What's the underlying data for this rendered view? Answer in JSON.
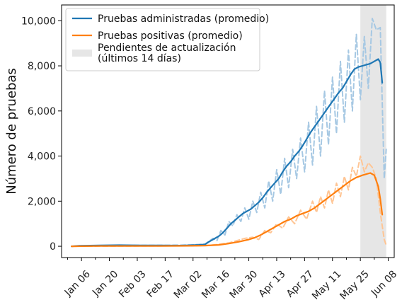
{
  "chart_data": {
    "type": "line",
    "title": "",
    "xlabel": "",
    "ylabel": "Número de pruebas",
    "ylim": [
      -500,
      10700
    ],
    "xlim": [
      "2019-12-27",
      "2020-06-11"
    ],
    "x_ticks": [
      {
        "date": "2020-01-06",
        "label": "Jan 06"
      },
      {
        "date": "2020-01-20",
        "label": "Jan 20"
      },
      {
        "date": "2020-02-03",
        "label": "Feb 03"
      },
      {
        "date": "2020-02-17",
        "label": "Feb 17"
      },
      {
        "date": "2020-03-02",
        "label": "Mar 02"
      },
      {
        "date": "2020-03-16",
        "label": "Mar 16"
      },
      {
        "date": "2020-03-30",
        "label": "Mar 30"
      },
      {
        "date": "2020-04-13",
        "label": "Apr 13"
      },
      {
        "date": "2020-04-27",
        "label": "Apr 27"
      },
      {
        "date": "2020-05-11",
        "label": "May 11"
      },
      {
        "date": "2020-05-25",
        "label": "May 25"
      },
      {
        "date": "2020-06-08",
        "label": "Jun 08"
      }
    ],
    "y_ticks": [
      {
        "value": 0,
        "label": "0"
      },
      {
        "value": 2000,
        "label": "2,000"
      },
      {
        "value": 4000,
        "label": "4,000"
      },
      {
        "value": 6000,
        "label": "6,000"
      },
      {
        "value": 8000,
        "label": "8,000"
      },
      {
        "value": 10000,
        "label": "10,000"
      }
    ],
    "grid": false,
    "legend_position": "top-left",
    "shaded_region": {
      "start": "2020-05-25",
      "end": "2020-06-07",
      "label": "Pendientes de actualización\n(últimos 14 días)",
      "color": "#e6e6e6"
    },
    "series": [
      {
        "name": "Pruebas administradas (promedio)",
        "color": "#1f77b4",
        "style": "solid",
        "points": [
          [
            "2020-01-01",
            0
          ],
          [
            "2020-01-05",
            20
          ],
          [
            "2020-01-15",
            40
          ],
          [
            "2020-01-25",
            50
          ],
          [
            "2020-02-05",
            40
          ],
          [
            "2020-02-15",
            40
          ],
          [
            "2020-02-25",
            30
          ],
          [
            "2020-03-05",
            60
          ],
          [
            "2020-03-08",
            80
          ],
          [
            "2020-03-10",
            200
          ],
          [
            "2020-03-12",
            300
          ],
          [
            "2020-03-15",
            450
          ],
          [
            "2020-03-17",
            600
          ],
          [
            "2020-03-19",
            800
          ],
          [
            "2020-03-21",
            1000
          ],
          [
            "2020-03-23",
            1150
          ],
          [
            "2020-03-25",
            1300
          ],
          [
            "2020-03-27",
            1450
          ],
          [
            "2020-03-29",
            1550
          ],
          [
            "2020-03-31",
            1650
          ],
          [
            "2020-04-02",
            1800
          ],
          [
            "2020-04-04",
            1950
          ],
          [
            "2020-04-06",
            2150
          ],
          [
            "2020-04-08",
            2400
          ],
          [
            "2020-04-10",
            2600
          ],
          [
            "2020-04-12",
            2800
          ],
          [
            "2020-04-14",
            3000
          ],
          [
            "2020-04-16",
            3300
          ],
          [
            "2020-04-18",
            3550
          ],
          [
            "2020-04-20",
            3750
          ],
          [
            "2020-04-22",
            4000
          ],
          [
            "2020-04-24",
            4200
          ],
          [
            "2020-04-26",
            4450
          ],
          [
            "2020-04-28",
            4750
          ],
          [
            "2020-04-30",
            5050
          ],
          [
            "2020-05-02",
            5300
          ],
          [
            "2020-05-04",
            5550
          ],
          [
            "2020-05-06",
            5800
          ],
          [
            "2020-05-08",
            6050
          ],
          [
            "2020-05-10",
            6300
          ],
          [
            "2020-05-12",
            6550
          ],
          [
            "2020-05-14",
            6800
          ],
          [
            "2020-05-16",
            7000
          ],
          [
            "2020-05-18",
            7300
          ],
          [
            "2020-05-20",
            7600
          ],
          [
            "2020-05-22",
            7850
          ],
          [
            "2020-05-24",
            7950
          ],
          [
            "2020-05-26",
            8000
          ],
          [
            "2020-05-28",
            8050
          ],
          [
            "2020-05-30",
            8100
          ],
          [
            "2020-06-01",
            8200
          ],
          [
            "2020-06-03",
            8300
          ],
          [
            "2020-06-04",
            8150
          ],
          [
            "2020-06-05",
            7250
          ]
        ]
      },
      {
        "name": "Pruebas positivas (promedio)",
        "color": "#ff7f0e",
        "style": "solid",
        "points": [
          [
            "2020-01-01",
            0
          ],
          [
            "2020-01-15",
            10
          ],
          [
            "2020-02-01",
            10
          ],
          [
            "2020-02-15",
            10
          ],
          [
            "2020-03-01",
            20
          ],
          [
            "2020-03-08",
            30
          ],
          [
            "2020-03-15",
            60
          ],
          [
            "2020-03-20",
            120
          ],
          [
            "2020-03-25",
            200
          ],
          [
            "2020-03-30",
            300
          ],
          [
            "2020-04-02",
            380
          ],
          [
            "2020-04-05",
            500
          ],
          [
            "2020-04-08",
            650
          ],
          [
            "2020-04-11",
            800
          ],
          [
            "2020-04-14",
            950
          ],
          [
            "2020-04-17",
            1100
          ],
          [
            "2020-04-20",
            1200
          ],
          [
            "2020-04-23",
            1350
          ],
          [
            "2020-04-26",
            1450
          ],
          [
            "2020-04-29",
            1550
          ],
          [
            "2020-05-02",
            1700
          ],
          [
            "2020-05-05",
            1900
          ],
          [
            "2020-05-08",
            2100
          ],
          [
            "2020-05-11",
            2300
          ],
          [
            "2020-05-14",
            2500
          ],
          [
            "2020-05-17",
            2700
          ],
          [
            "2020-05-20",
            2900
          ],
          [
            "2020-05-23",
            3050
          ],
          [
            "2020-05-26",
            3150
          ],
          [
            "2020-05-28",
            3200
          ],
          [
            "2020-05-30",
            3250
          ],
          [
            "2020-06-01",
            3150
          ],
          [
            "2020-06-03",
            2650
          ],
          [
            "2020-06-04",
            2100
          ],
          [
            "2020-06-05",
            1400
          ]
        ]
      },
      {
        "name": "",
        "color": "#a6c8e3",
        "style": "dashed",
        "points": [
          [
            "2020-01-01",
            0
          ],
          [
            "2020-01-15",
            30
          ],
          [
            "2020-02-01",
            40
          ],
          [
            "2020-02-15",
            40
          ],
          [
            "2020-03-01",
            60
          ],
          [
            "2020-03-08",
            100
          ],
          [
            "2020-03-12",
            350
          ],
          [
            "2020-03-14",
            250
          ],
          [
            "2020-03-16",
            700
          ],
          [
            "2020-03-18",
            500
          ],
          [
            "2020-03-20",
            1100
          ],
          [
            "2020-03-22",
            900
          ],
          [
            "2020-03-24",
            1400
          ],
          [
            "2020-03-26",
            1100
          ],
          [
            "2020-03-28",
            1700
          ],
          [
            "2020-03-30",
            1200
          ],
          [
            "2020-04-01",
            2000
          ],
          [
            "2020-04-03",
            1500
          ],
          [
            "2020-04-05",
            2400
          ],
          [
            "2020-04-07",
            1700
          ],
          [
            "2020-04-09",
            2900
          ],
          [
            "2020-04-11",
            2000
          ],
          [
            "2020-04-13",
            3400
          ],
          [
            "2020-04-15",
            2300
          ],
          [
            "2020-04-17",
            3900
          ],
          [
            "2020-04-19",
            2600
          ],
          [
            "2020-04-21",
            4300
          ],
          [
            "2020-04-23",
            3000
          ],
          [
            "2020-04-25",
            4800
          ],
          [
            "2020-04-27",
            3300
          ],
          [
            "2020-04-29",
            5500
          ],
          [
            "2020-05-01",
            3600
          ],
          [
            "2020-05-03",
            6200
          ],
          [
            "2020-05-05",
            4000
          ],
          [
            "2020-05-07",
            6900
          ],
          [
            "2020-05-09",
            4500
          ],
          [
            "2020-05-11",
            7500
          ],
          [
            "2020-05-13",
            5000
          ],
          [
            "2020-05-15",
            8200
          ],
          [
            "2020-05-17",
            5500
          ],
          [
            "2020-05-19",
            8700
          ],
          [
            "2020-05-21",
            6000
          ],
          [
            "2020-05-23",
            9400
          ],
          [
            "2020-05-25",
            6500
          ],
          [
            "2020-05-27",
            9300
          ],
          [
            "2020-05-29",
            7000
          ],
          [
            "2020-05-31",
            10100
          ],
          [
            "2020-06-02",
            9600
          ],
          [
            "2020-06-04",
            9700
          ],
          [
            "2020-06-06",
            3000
          ],
          [
            "2020-06-07",
            4300
          ]
        ]
      },
      {
        "name": "",
        "color": "#ffc594",
        "style": "dashed",
        "points": [
          [
            "2020-01-01",
            0
          ],
          [
            "2020-02-01",
            10
          ],
          [
            "2020-03-01",
            20
          ],
          [
            "2020-03-10",
            40
          ],
          [
            "2020-03-16",
            100
          ],
          [
            "2020-03-20",
            150
          ],
          [
            "2020-03-24",
            250
          ],
          [
            "2020-03-28",
            350
          ],
          [
            "2020-04-01",
            400
          ],
          [
            "2020-04-04",
            300
          ],
          [
            "2020-04-07",
            700
          ],
          [
            "2020-04-10",
            600
          ],
          [
            "2020-04-13",
            1000
          ],
          [
            "2020-04-16",
            800
          ],
          [
            "2020-04-19",
            1300
          ],
          [
            "2020-04-22",
            1000
          ],
          [
            "2020-04-25",
            1600
          ],
          [
            "2020-04-28",
            1200
          ],
          [
            "2020-05-01",
            2000
          ],
          [
            "2020-05-03",
            1500
          ],
          [
            "2020-05-05",
            2200
          ],
          [
            "2020-05-07",
            1700
          ],
          [
            "2020-05-09",
            2500
          ],
          [
            "2020-05-11",
            1900
          ],
          [
            "2020-05-13",
            2800
          ],
          [
            "2020-05-15",
            2200
          ],
          [
            "2020-05-17",
            3100
          ],
          [
            "2020-05-19",
            2500
          ],
          [
            "2020-05-21",
            3500
          ],
          [
            "2020-05-23",
            3100
          ],
          [
            "2020-05-25",
            4000
          ],
          [
            "2020-05-27",
            3300
          ],
          [
            "2020-05-29",
            3700
          ],
          [
            "2020-05-31",
            3500
          ],
          [
            "2020-06-02",
            3000
          ],
          [
            "2020-06-04",
            1500
          ],
          [
            "2020-06-06",
            300
          ],
          [
            "2020-06-07",
            50
          ]
        ]
      }
    ]
  }
}
